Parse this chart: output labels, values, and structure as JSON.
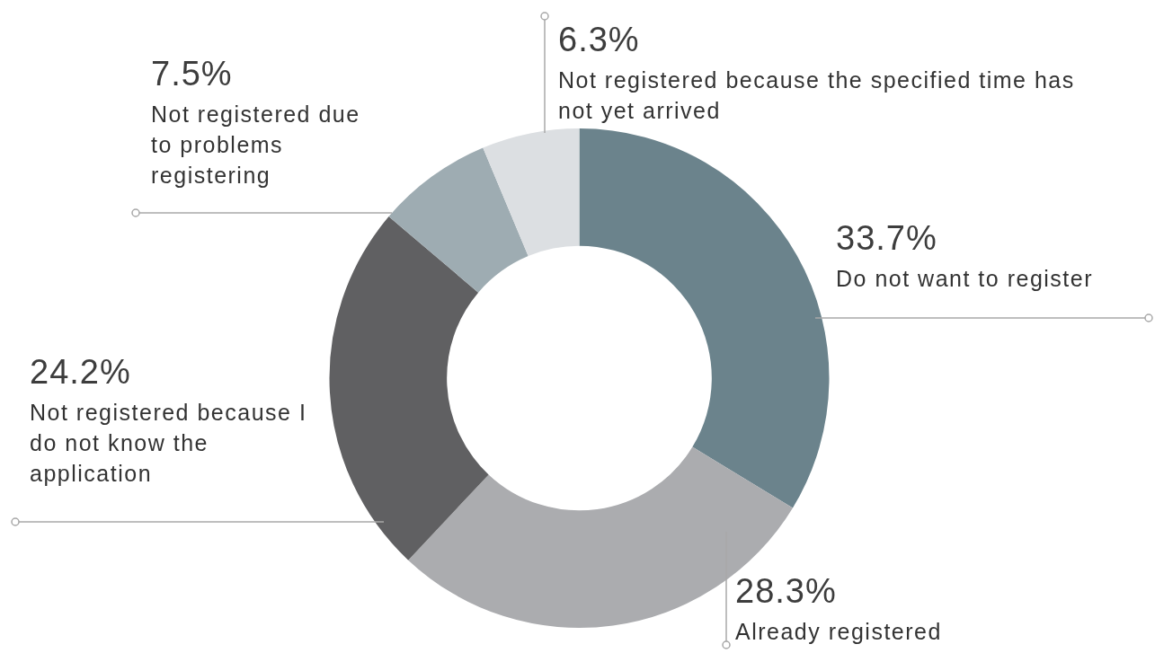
{
  "chart_data": {
    "type": "donut",
    "categories": [
      "Do not want to register",
      "Already registered",
      "Not registered because I do not know the application",
      "Not registered due to problems registering",
      "Not registered because the specified time has not yet arrived"
    ],
    "values": [
      33.7,
      28.3,
      24.2,
      7.5,
      6.3
    ],
    "value_labels": [
      "33.7%",
      "28.3%",
      "24.2%",
      "7.5%",
      "6.3%"
    ],
    "colors": [
      "#6b838c",
      "#abacaf",
      "#606062",
      "#9eacb2",
      "#dcdfe2"
    ]
  }
}
